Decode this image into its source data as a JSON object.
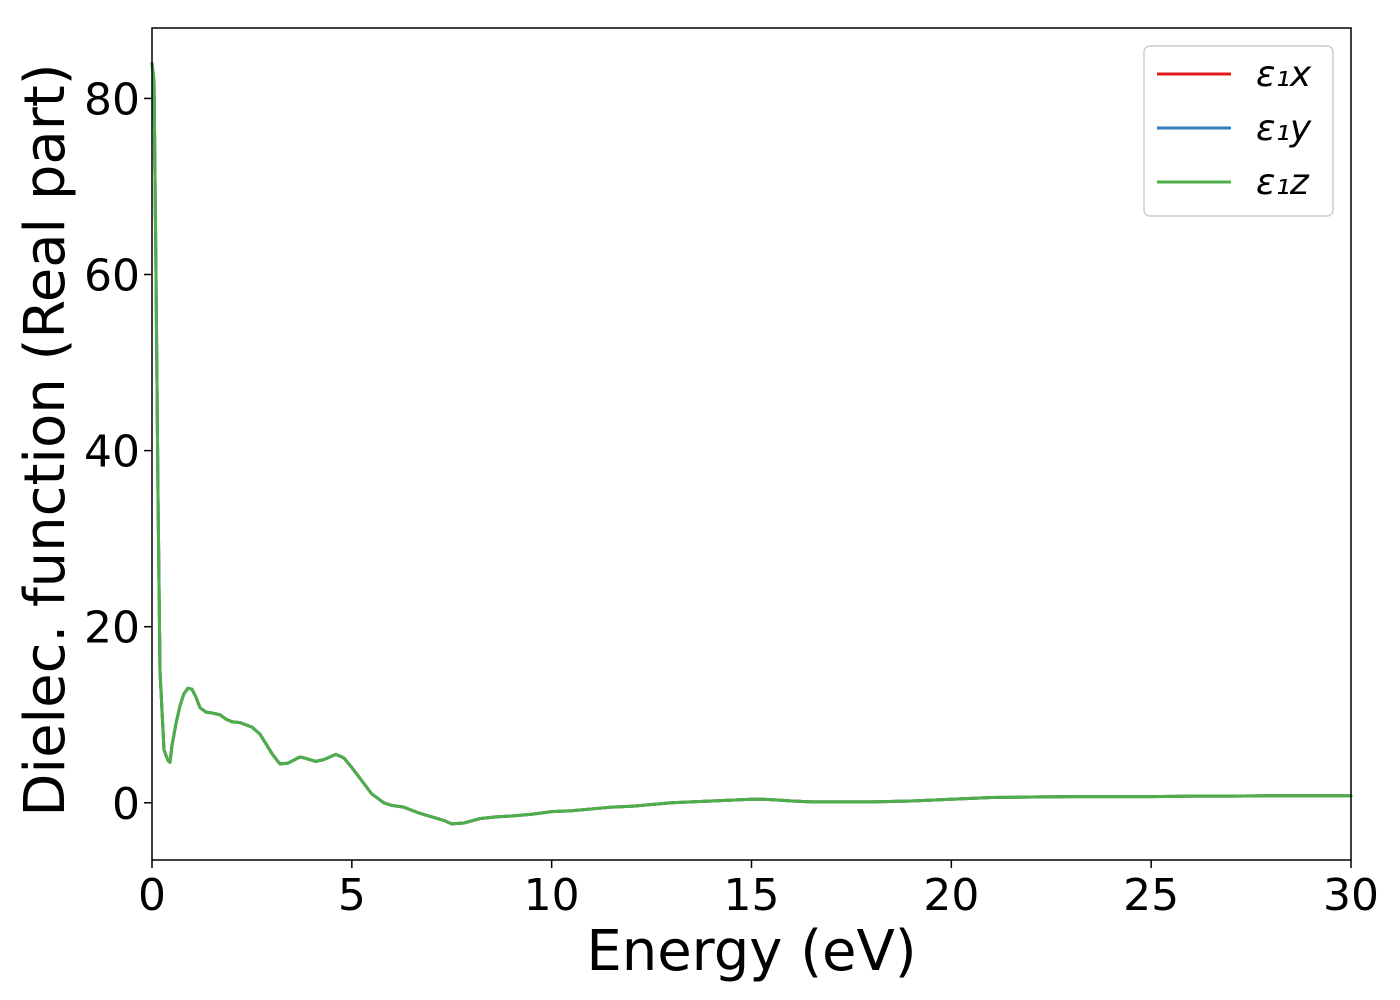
{
  "chart_data": {
    "type": "line",
    "title": "",
    "xlabel": "Energy (eV)",
    "ylabel": "Dielec. function (Real part)",
    "xlim": [
      0,
      30
    ],
    "ylim": [
      -6.5,
      88
    ],
    "xticks": [
      0,
      5,
      10,
      15,
      20,
      25,
      30
    ],
    "yticks": [
      0,
      20,
      40,
      60,
      80
    ],
    "xtick_labels": [
      "0",
      "5",
      "10",
      "15",
      "20",
      "25",
      "30"
    ],
    "ytick_labels": [
      "0",
      "20",
      "40",
      "60",
      "80"
    ],
    "grid": false,
    "legend_position": "top-right",
    "x": [
      0.0,
      0.05,
      0.1,
      0.15,
      0.2,
      0.3,
      0.4,
      0.45,
      0.5,
      0.6,
      0.7,
      0.8,
      0.9,
      1.0,
      1.1,
      1.2,
      1.35,
      1.5,
      1.7,
      1.85,
      2.0,
      2.2,
      2.5,
      2.7,
      3.0,
      3.2,
      3.4,
      3.7,
      3.8,
      4.1,
      4.3,
      4.6,
      4.8,
      5.0,
      5.2,
      5.5,
      5.8,
      6.0,
      6.3,
      6.7,
      7.0,
      7.3,
      7.5,
      7.8,
      8.2,
      8.6,
      9.0,
      9.5,
      10.0,
      10.5,
      11.0,
      11.5,
      12.0,
      12.5,
      13.0,
      13.5,
      14.0,
      14.5,
      15.0,
      15.3,
      15.7,
      16.0,
      16.5,
      17.0,
      18.0,
      19.0,
      20.0,
      21.0,
      22.0,
      23.0,
      24.0,
      25.0,
      26.0,
      27.0,
      28.0,
      29.0,
      30.0
    ],
    "series": [
      {
        "name": "ε₁x",
        "color": "#e41a1c",
        "y": [
          84.0,
          82.0,
          60.0,
          35.0,
          15.0,
          6.0,
          4.8,
          4.6,
          6.5,
          9.0,
          11.0,
          12.4,
          13.0,
          12.9,
          12.0,
          10.8,
          10.3,
          10.2,
          10.0,
          9.5,
          9.2,
          9.1,
          8.6,
          7.8,
          5.6,
          4.4,
          4.5,
          5.2,
          5.1,
          4.7,
          4.9,
          5.5,
          5.1,
          4.0,
          2.8,
          1.0,
          0.0,
          -0.3,
          -0.5,
          -1.2,
          -1.6,
          -2.0,
          -2.4,
          -2.3,
          -1.8,
          -1.6,
          -1.5,
          -1.3,
          -1.0,
          -0.9,
          -0.7,
          -0.5,
          -0.4,
          -0.2,
          0.0,
          0.1,
          0.2,
          0.3,
          0.4,
          0.4,
          0.3,
          0.2,
          0.1,
          0.1,
          0.1,
          0.2,
          0.4,
          0.6,
          0.65,
          0.7,
          0.7,
          0.7,
          0.75,
          0.75,
          0.8,
          0.8,
          0.8
        ]
      },
      {
        "name": "ε₁y",
        "color": "#377eb8",
        "y": [
          84.0,
          82.0,
          60.0,
          35.0,
          15.0,
          6.0,
          4.8,
          4.6,
          6.5,
          9.0,
          11.0,
          12.4,
          13.0,
          12.9,
          12.0,
          10.8,
          10.3,
          10.2,
          10.0,
          9.5,
          9.2,
          9.1,
          8.6,
          7.8,
          5.6,
          4.4,
          4.5,
          5.2,
          5.1,
          4.7,
          4.9,
          5.5,
          5.1,
          4.0,
          2.8,
          1.0,
          0.0,
          -0.3,
          -0.5,
          -1.2,
          -1.6,
          -2.0,
          -2.4,
          -2.3,
          -1.8,
          -1.6,
          -1.5,
          -1.3,
          -1.0,
          -0.9,
          -0.7,
          -0.5,
          -0.4,
          -0.2,
          0.0,
          0.1,
          0.2,
          0.3,
          0.4,
          0.4,
          0.3,
          0.2,
          0.1,
          0.1,
          0.1,
          0.2,
          0.4,
          0.6,
          0.65,
          0.7,
          0.7,
          0.7,
          0.75,
          0.75,
          0.8,
          0.8,
          0.8
        ]
      },
      {
        "name": "ε₁z",
        "color": "#4daf4a",
        "y": [
          84.0,
          82.0,
          60.0,
          35.0,
          15.0,
          6.0,
          4.8,
          4.6,
          6.5,
          9.0,
          11.0,
          12.4,
          13.0,
          12.9,
          12.0,
          10.8,
          10.3,
          10.2,
          10.0,
          9.5,
          9.2,
          9.1,
          8.6,
          7.8,
          5.6,
          4.4,
          4.5,
          5.2,
          5.1,
          4.7,
          4.9,
          5.5,
          5.1,
          4.0,
          2.8,
          1.0,
          0.0,
          -0.3,
          -0.5,
          -1.2,
          -1.6,
          -2.0,
          -2.4,
          -2.3,
          -1.8,
          -1.6,
          -1.5,
          -1.3,
          -1.0,
          -0.9,
          -0.7,
          -0.5,
          -0.4,
          -0.2,
          0.0,
          0.1,
          0.2,
          0.3,
          0.4,
          0.4,
          0.3,
          0.2,
          0.1,
          0.1,
          0.1,
          0.2,
          0.4,
          0.6,
          0.65,
          0.7,
          0.7,
          0.7,
          0.75,
          0.75,
          0.8,
          0.8,
          0.8
        ]
      }
    ]
  }
}
